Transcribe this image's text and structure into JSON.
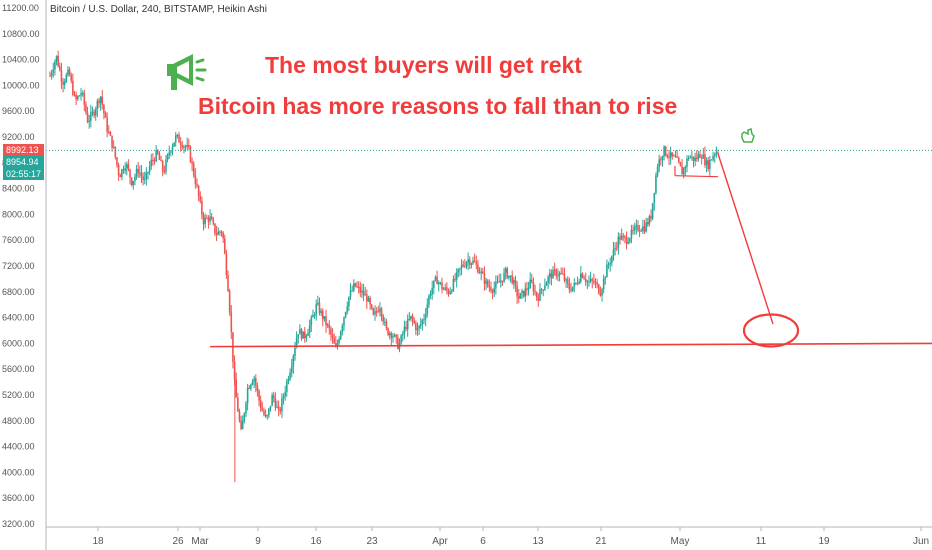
{
  "header": {
    "title": "Bitcoin / U.S. Dollar, 240, BITSTAMP, Heikin Ashi"
  },
  "annotations": {
    "line1": "The most buyers will get rekt",
    "line2": "Bitcoin has more reasons to fall than to rise",
    "color": "#f23b3b"
  },
  "price_tags": {
    "last": "8992.13",
    "close": "8954.94",
    "countdown": "02:55:17",
    "last_color": "#ef5350",
    "close_color": "#26a69a",
    "countdown_color": "#26a69a"
  },
  "colors": {
    "up": "#26a69a",
    "down": "#ef5350",
    "grid": "#f0f3fa",
    "axis": "#555555"
  },
  "icons": [
    "megaphone-icon",
    "hand-pointer-icon"
  ],
  "chart_data": {
    "type": "candlestick",
    "style": "Heikin Ashi",
    "ylim": [
      3200,
      11200
    ],
    "yticks": [
      "11200.00",
      "10800.00",
      "10400.00",
      "10000.00",
      "9600.00",
      "9200.00",
      "8800.00",
      "8400.00",
      "8000.00",
      "7600.00",
      "7200.00",
      "6800.00",
      "6400.00",
      "6000.00",
      "5600.00",
      "5200.00",
      "4800.00",
      "4400.00",
      "4000.00",
      "3600.00",
      "3200.00"
    ],
    "xticks": [
      "18",
      "26",
      "Mar",
      "9",
      "16",
      "23",
      "Apr",
      "6",
      "13",
      "21",
      "May",
      "11",
      "19",
      "Jun"
    ],
    "grid": false,
    "series_path": [
      [
        0,
        10150
      ],
      [
        0.03,
        10450
      ],
      [
        0.06,
        10050
      ],
      [
        0.09,
        10200
      ],
      [
        0.12,
        9750
      ],
      [
        0.15,
        9900
      ],
      [
        0.18,
        9450
      ],
      [
        0.21,
        9600
      ],
      [
        0.24,
        9850
      ],
      [
        0.27,
        9350
      ],
      [
        0.3,
        9050
      ],
      [
        0.33,
        8600
      ],
      [
        0.36,
        8800
      ],
      [
        0.39,
        8500
      ],
      [
        0.42,
        8700
      ],
      [
        0.45,
        8500
      ],
      [
        0.48,
        8800
      ],
      [
        0.51,
        8950
      ],
      [
        0.54,
        8650
      ],
      [
        0.57,
        9000
      ],
      [
        0.6,
        9200
      ],
      [
        0.63,
        9100
      ],
      [
        0.66,
        9000
      ],
      [
        0.7,
        8400
      ],
      [
        0.73,
        7900
      ],
      [
        0.76,
        7950
      ],
      [
        0.79,
        7700
      ],
      [
        0.82,
        7750
      ],
      [
        0.85,
        6800
      ],
      [
        0.88,
        5300
      ],
      [
        0.91,
        4600
      ],
      [
        0.94,
        5300
      ],
      [
        0.97,
        5500
      ],
      [
        1.0,
        5050
      ],
      [
        1.03,
        4800
      ],
      [
        1.06,
        5200
      ],
      [
        1.09,
        4900
      ],
      [
        1.12,
        5300
      ],
      [
        1.15,
        5700
      ],
      [
        1.18,
        6200
      ],
      [
        1.21,
        6100
      ],
      [
        1.24,
        6300
      ],
      [
        1.27,
        6600
      ],
      [
        1.3,
        6400
      ],
      [
        1.33,
        6200
      ],
      [
        1.36,
        5900
      ],
      [
        1.39,
        6300
      ],
      [
        1.42,
        6700
      ],
      [
        1.45,
        6900
      ],
      [
        1.48,
        6800
      ],
      [
        1.51,
        6700
      ],
      [
        1.54,
        6400
      ],
      [
        1.57,
        6600
      ],
      [
        1.6,
        6200
      ],
      [
        1.63,
        6150
      ],
      [
        1.66,
        5950
      ],
      [
        1.69,
        6250
      ],
      [
        1.72,
        6400
      ],
      [
        1.75,
        6200
      ],
      [
        1.78,
        6400
      ],
      [
        1.81,
        6800
      ],
      [
        1.84,
        7000
      ],
      [
        1.87,
        6850
      ],
      [
        1.9,
        6800
      ],
      [
        1.93,
        7000
      ],
      [
        1.96,
        7200
      ],
      [
        1.99,
        7300
      ],
      [
        2.02,
        7250
      ],
      [
        2.05,
        7100
      ],
      [
        2.08,
        6900
      ],
      [
        2.11,
        6850
      ],
      [
        2.14,
        6950
      ],
      [
        2.17,
        7100
      ],
      [
        2.2,
        7000
      ],
      [
        2.23,
        6700
      ],
      [
        2.26,
        6800
      ],
      [
        2.29,
        6950
      ],
      [
        2.32,
        6700
      ],
      [
        2.35,
        6900
      ],
      [
        2.38,
        7050
      ],
      [
        2.41,
        7100
      ],
      [
        2.44,
        7050
      ],
      [
        2.47,
        6850
      ],
      [
        2.5,
        6900
      ],
      [
        2.53,
        7100
      ],
      [
        2.56,
        6950
      ],
      [
        2.59,
        6950
      ],
      [
        2.62,
        6800
      ],
      [
        2.65,
        7150
      ],
      [
        2.68,
        7400
      ],
      [
        2.71,
        7650
      ],
      [
        2.74,
        7600
      ],
      [
        2.77,
        7700
      ],
      [
        2.8,
        7800
      ],
      [
        2.83,
        7800
      ],
      [
        2.86,
        7950
      ],
      [
        2.89,
        8750
      ],
      [
        2.92,
        9000
      ],
      [
        2.95,
        8900
      ],
      [
        2.98,
        8850
      ],
      [
        3.01,
        8650
      ],
      [
        3.04,
        8900
      ],
      [
        3.07,
        8850
      ],
      [
        3.1,
        8950
      ],
      [
        3.13,
        8750
      ],
      [
        3.16,
        8950
      ],
      [
        3.18,
        8992
      ]
    ],
    "drawings": {
      "support_level": 6000,
      "projection_from": 8992,
      "projection_to": 6100,
      "support_box_low": 8600,
      "support_box_high": 8600
    }
  }
}
